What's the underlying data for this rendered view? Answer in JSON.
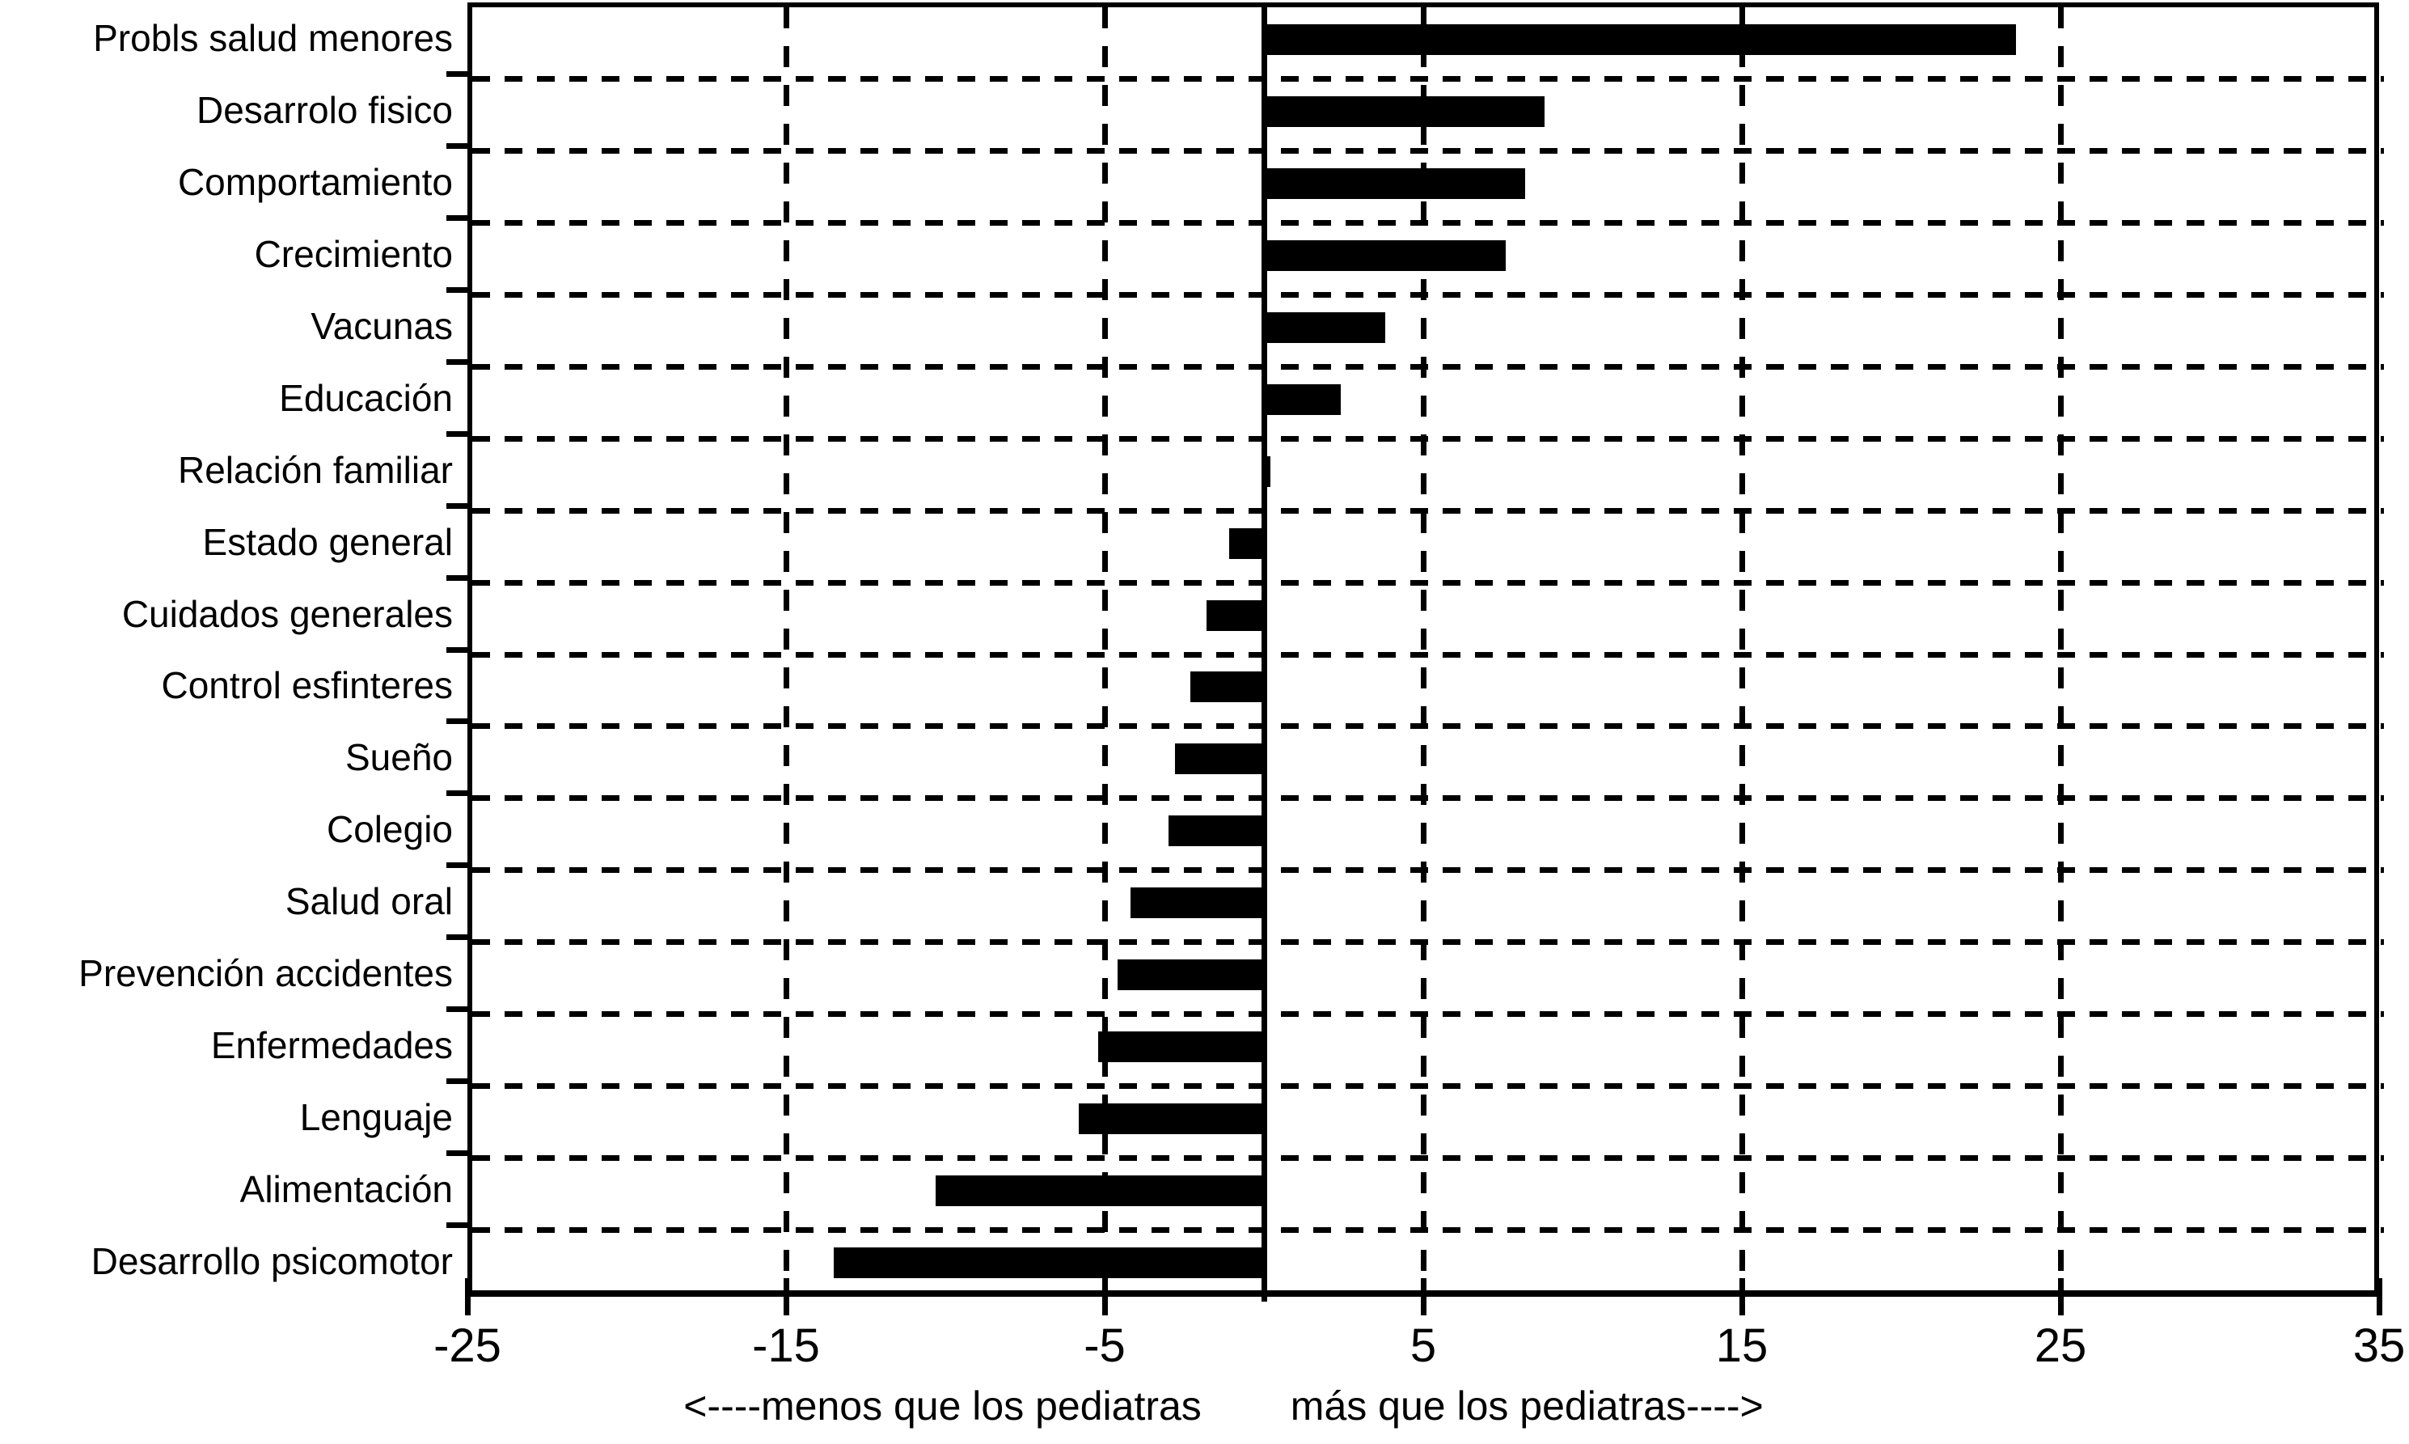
{
  "chart_data": {
    "type": "bar",
    "orientation": "horizontal",
    "title": "",
    "categories": [
      "Probls salud menores",
      "Desarrolo fisico",
      "Comportamiento",
      "Crecimiento",
      "Vacunas",
      "Educación",
      "Relación familiar",
      "Estado general",
      "Cuidados generales",
      "Control esfinteres",
      "Sueño",
      "Colegio",
      "Salud oral",
      "Prevención accidentes",
      "Enfermedades",
      "Lenguaje",
      "Alimentación",
      "Desarrollo psicomotor"
    ],
    "values": [
      23.6,
      8.8,
      8.2,
      7.6,
      3.8,
      2.4,
      0.2,
      -1.1,
      -1.8,
      -2.3,
      -2.8,
      -3.0,
      -4.2,
      -4.6,
      -5.2,
      -5.8,
      -10.3,
      -13.5
    ],
    "xlim": [
      -25,
      35
    ],
    "xticks": [
      -25,
      -15,
      -5,
      5,
      15,
      25,
      35
    ],
    "grid_x": [
      -15,
      -5,
      5,
      15,
      25
    ],
    "zero_line": 0,
    "xlabel_left": "<----menos que los pediatras",
    "xlabel_right": "más que los pediatras---->",
    "bar_color": "#000000",
    "grid_color": "#000000",
    "background": "#ffffff",
    "grid_on": true,
    "legend_position": "none"
  }
}
